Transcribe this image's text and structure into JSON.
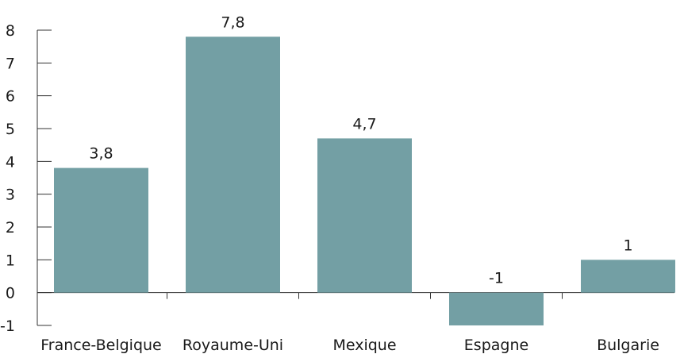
{
  "chart_data": {
    "type": "bar",
    "categories": [
      "France-Belgique",
      "Royaume-Uni",
      "Mexique",
      "Espagne",
      "Bulgarie"
    ],
    "values": [
      3.8,
      7.8,
      4.7,
      -1,
      1
    ],
    "value_labels": [
      "3,8",
      "7,8",
      "4,7",
      "-1",
      "1"
    ],
    "ylim": [
      -1,
      8
    ],
    "yticks": [
      "-1",
      "0",
      "1",
      "2",
      "3",
      "4",
      "5",
      "6",
      "7",
      "8"
    ],
    "title": "",
    "xlabel": "",
    "ylabel": "",
    "grid": false,
    "colors": {
      "bar": "#739fa4",
      "axis": "#333333",
      "text": "#1a1a1a"
    }
  }
}
